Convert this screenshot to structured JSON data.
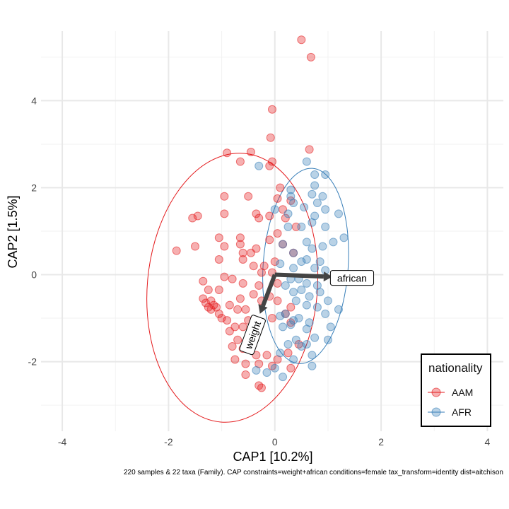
{
  "chart_data": {
    "type": "scatter",
    "title": "",
    "xlabel": "CAP1 [10.2%]",
    "ylabel": "CAP2 [1.5%]",
    "xlim": [
      -4.4,
      4.3
    ],
    "ylim": [
      -3.6,
      5.6
    ],
    "xticks": [
      -4,
      -2,
      0,
      2,
      4
    ],
    "yticks": [
      -2,
      0,
      2,
      4
    ],
    "xtick_labels": [
      "-4",
      "-2",
      "0",
      "2",
      "4"
    ],
    "ytick_labels": [
      "-2",
      "0",
      "2",
      "4"
    ],
    "grid": true,
    "legend": {
      "title": "nationality",
      "position": "bottom-right"
    },
    "series": [
      {
        "name": "AAM",
        "color": "#e41a1c",
        "ellipse": {
          "cx": -0.8,
          "cy": -0.3,
          "rx": 1.6,
          "ry": 3.1,
          "angle_deg": 5
        },
        "points": [
          [
            0.5,
            5.4
          ],
          [
            0.68,
            5.0
          ],
          [
            -0.05,
            3.8
          ],
          [
            -0.08,
            3.15
          ],
          [
            0.65,
            2.88
          ],
          [
            -0.9,
            2.8
          ],
          [
            -0.45,
            2.82
          ],
          [
            -0.65,
            2.6
          ],
          [
            -0.1,
            2.5
          ],
          [
            -0.05,
            2.6
          ],
          [
            0.1,
            2.0
          ],
          [
            0.05,
            1.75
          ],
          [
            0.3,
            1.7
          ],
          [
            -0.5,
            1.8
          ],
          [
            0.15,
            1.5
          ],
          [
            -0.95,
            1.8
          ],
          [
            -1.55,
            1.3
          ],
          [
            -1.45,
            1.35
          ],
          [
            -1.85,
            0.55
          ],
          [
            -1.5,
            0.65
          ],
          [
            -0.95,
            1.4
          ],
          [
            -0.35,
            1.4
          ],
          [
            -0.3,
            1.3
          ],
          [
            -0.1,
            1.35
          ],
          [
            0.2,
            1.3
          ],
          [
            0.4,
            1.1
          ],
          [
            -0.65,
            0.85
          ],
          [
            -0.65,
            0.7
          ],
          [
            -0.35,
            0.6
          ],
          [
            -0.1,
            0.8
          ],
          [
            0.05,
            0.95
          ],
          [
            -0.6,
            0.5
          ],
          [
            -0.45,
            0.5
          ],
          [
            0.15,
            0.7
          ],
          [
            0.35,
            0.5
          ],
          [
            -1.05,
            0.85
          ],
          [
            -0.95,
            0.65
          ],
          [
            -1.05,
            0.35
          ],
          [
            -0.95,
            -0.05
          ],
          [
            -1.35,
            -0.15
          ],
          [
            -1.25,
            -0.35
          ],
          [
            -1.05,
            -0.35
          ],
          [
            -0.8,
            -0.1
          ],
          [
            -0.6,
            0.35
          ],
          [
            -0.4,
            0.2
          ],
          [
            -0.2,
            0.2
          ],
          [
            0.0,
            0.3
          ],
          [
            -0.25,
            0.05
          ],
          [
            -0.05,
            0.05
          ],
          [
            -0.6,
            -0.2
          ],
          [
            -0.3,
            -0.25
          ],
          [
            0.05,
            -0.2
          ],
          [
            -1.35,
            -0.55
          ],
          [
            -1.3,
            -0.65
          ],
          [
            -1.25,
            -0.75
          ],
          [
            -1.2,
            -0.8
          ],
          [
            -1.15,
            -0.7
          ],
          [
            -1.05,
            -0.9
          ],
          [
            -0.85,
            -0.7
          ],
          [
            -0.65,
            -0.55
          ],
          [
            -0.4,
            -0.45
          ],
          [
            -0.25,
            -0.6
          ],
          [
            -0.1,
            -0.5
          ],
          [
            0.05,
            -0.6
          ],
          [
            -1.0,
            -1.0
          ],
          [
            -0.9,
            -1.05
          ],
          [
            -0.75,
            -1.2
          ],
          [
            -0.85,
            -1.3
          ],
          [
            -0.6,
            -1.2
          ],
          [
            -0.5,
            -1.05
          ],
          [
            -0.3,
            -1.15
          ],
          [
            -0.05,
            -1.0
          ],
          [
            0.2,
            -0.9
          ],
          [
            0.3,
            -1.1
          ],
          [
            -0.7,
            -1.5
          ],
          [
            -0.55,
            -1.55
          ],
          [
            -0.45,
            -1.65
          ],
          [
            -0.6,
            -1.7
          ],
          [
            -0.8,
            -1.65
          ],
          [
            -0.35,
            -1.85
          ],
          [
            -0.15,
            -1.85
          ],
          [
            -0.75,
            -1.95
          ],
          [
            -0.55,
            -2.05
          ],
          [
            -0.3,
            -2.05
          ],
          [
            0.05,
            -1.95
          ],
          [
            0.3,
            -2.15
          ],
          [
            -0.55,
            -2.3
          ],
          [
            -0.3,
            -2.55
          ],
          [
            -0.25,
            -2.6
          ],
          [
            -0.05,
            -2.1
          ],
          [
            0.25,
            -1.8
          ],
          [
            0.45,
            -1.6
          ],
          [
            -0.45,
            -1.25
          ],
          [
            0.3,
            -0.75
          ],
          [
            -0.7,
            -0.8
          ],
          [
            -0.55,
            -0.8
          ],
          [
            -1.1,
            -0.75
          ],
          [
            -1.2,
            -0.6
          ]
        ]
      },
      {
        "name": "AFR",
        "color": "#377eb8",
        "ellipse": {
          "cx": 0.58,
          "cy": 0.2,
          "rx": 0.8,
          "ry": 2.25,
          "angle_deg": 4
        },
        "points": [
          [
            0.6,
            2.6
          ],
          [
            -0.3,
            2.5
          ],
          [
            0.75,
            2.3
          ],
          [
            0.95,
            2.3
          ],
          [
            0.3,
            1.95
          ],
          [
            0.75,
            2.05
          ],
          [
            0.7,
            1.85
          ],
          [
            0.3,
            1.8
          ],
          [
            0.9,
            1.8
          ],
          [
            0.35,
            1.65
          ],
          [
            0.0,
            1.5
          ],
          [
            0.25,
            1.4
          ],
          [
            0.55,
            1.55
          ],
          [
            0.8,
            1.65
          ],
          [
            0.75,
            1.35
          ],
          [
            0.95,
            1.5
          ],
          [
            1.2,
            1.4
          ],
          [
            0.7,
            1.2
          ],
          [
            0.25,
            1.1
          ],
          [
            0.5,
            1.1
          ],
          [
            0.95,
            1.1
          ],
          [
            1.3,
            0.85
          ],
          [
            1.1,
            0.75
          ],
          [
            0.15,
            0.7
          ],
          [
            0.6,
            0.75
          ],
          [
            0.7,
            0.6
          ],
          [
            0.9,
            0.65
          ],
          [
            0.35,
            0.5
          ],
          [
            0.6,
            0.35
          ],
          [
            0.85,
            0.3
          ],
          [
            0.1,
            0.25
          ],
          [
            0.35,
            0.15
          ],
          [
            0.5,
            0.3
          ],
          [
            0.75,
            0.15
          ],
          [
            0.95,
            0.1
          ],
          [
            0.3,
            -0.1
          ],
          [
            0.45,
            -0.1
          ],
          [
            0.6,
            -0.2
          ],
          [
            0.8,
            -0.25
          ],
          [
            0.2,
            -0.25
          ],
          [
            0.35,
            -0.4
          ],
          [
            0.5,
            -0.35
          ],
          [
            0.65,
            -0.5
          ],
          [
            0.85,
            -0.4
          ],
          [
            1.0,
            -0.6
          ],
          [
            0.4,
            -0.6
          ],
          [
            0.6,
            -0.7
          ],
          [
            0.8,
            -0.75
          ],
          [
            0.1,
            -0.95
          ],
          [
            0.2,
            -0.9
          ],
          [
            0.35,
            -1.05
          ],
          [
            0.45,
            -1.0
          ],
          [
            0.65,
            -1.1
          ],
          [
            0.95,
            -0.9
          ],
          [
            0.15,
            -1.2
          ],
          [
            0.3,
            -1.15
          ],
          [
            0.6,
            -1.25
          ],
          [
            1.05,
            -1.2
          ],
          [
            1.0,
            -1.5
          ],
          [
            0.4,
            -1.5
          ],
          [
            0.75,
            -1.45
          ],
          [
            0.25,
            -1.6
          ],
          [
            0.5,
            -1.65
          ],
          [
            0.7,
            -1.85
          ],
          [
            0.6,
            -1.6
          ],
          [
            0.1,
            -1.8
          ],
          [
            0.35,
            -1.95
          ],
          [
            0.0,
            -2.15
          ],
          [
            -0.35,
            -2.2
          ],
          [
            -0.15,
            -2.25
          ],
          [
            0.15,
            -2.35
          ],
          [
            0.7,
            -2.1
          ],
          [
            1.2,
            -0.8
          ]
        ]
      }
    ],
    "arrows": [
      {
        "label": "african",
        "x": 1.08,
        "y": -0.05
      },
      {
        "label": "weight",
        "x": -0.28,
        "y": -0.9
      }
    ],
    "caption": "220 samples & 22 taxa (Family). CAP constraints=weight+african conditions=female tax_transform=identity dist=aitchison"
  }
}
